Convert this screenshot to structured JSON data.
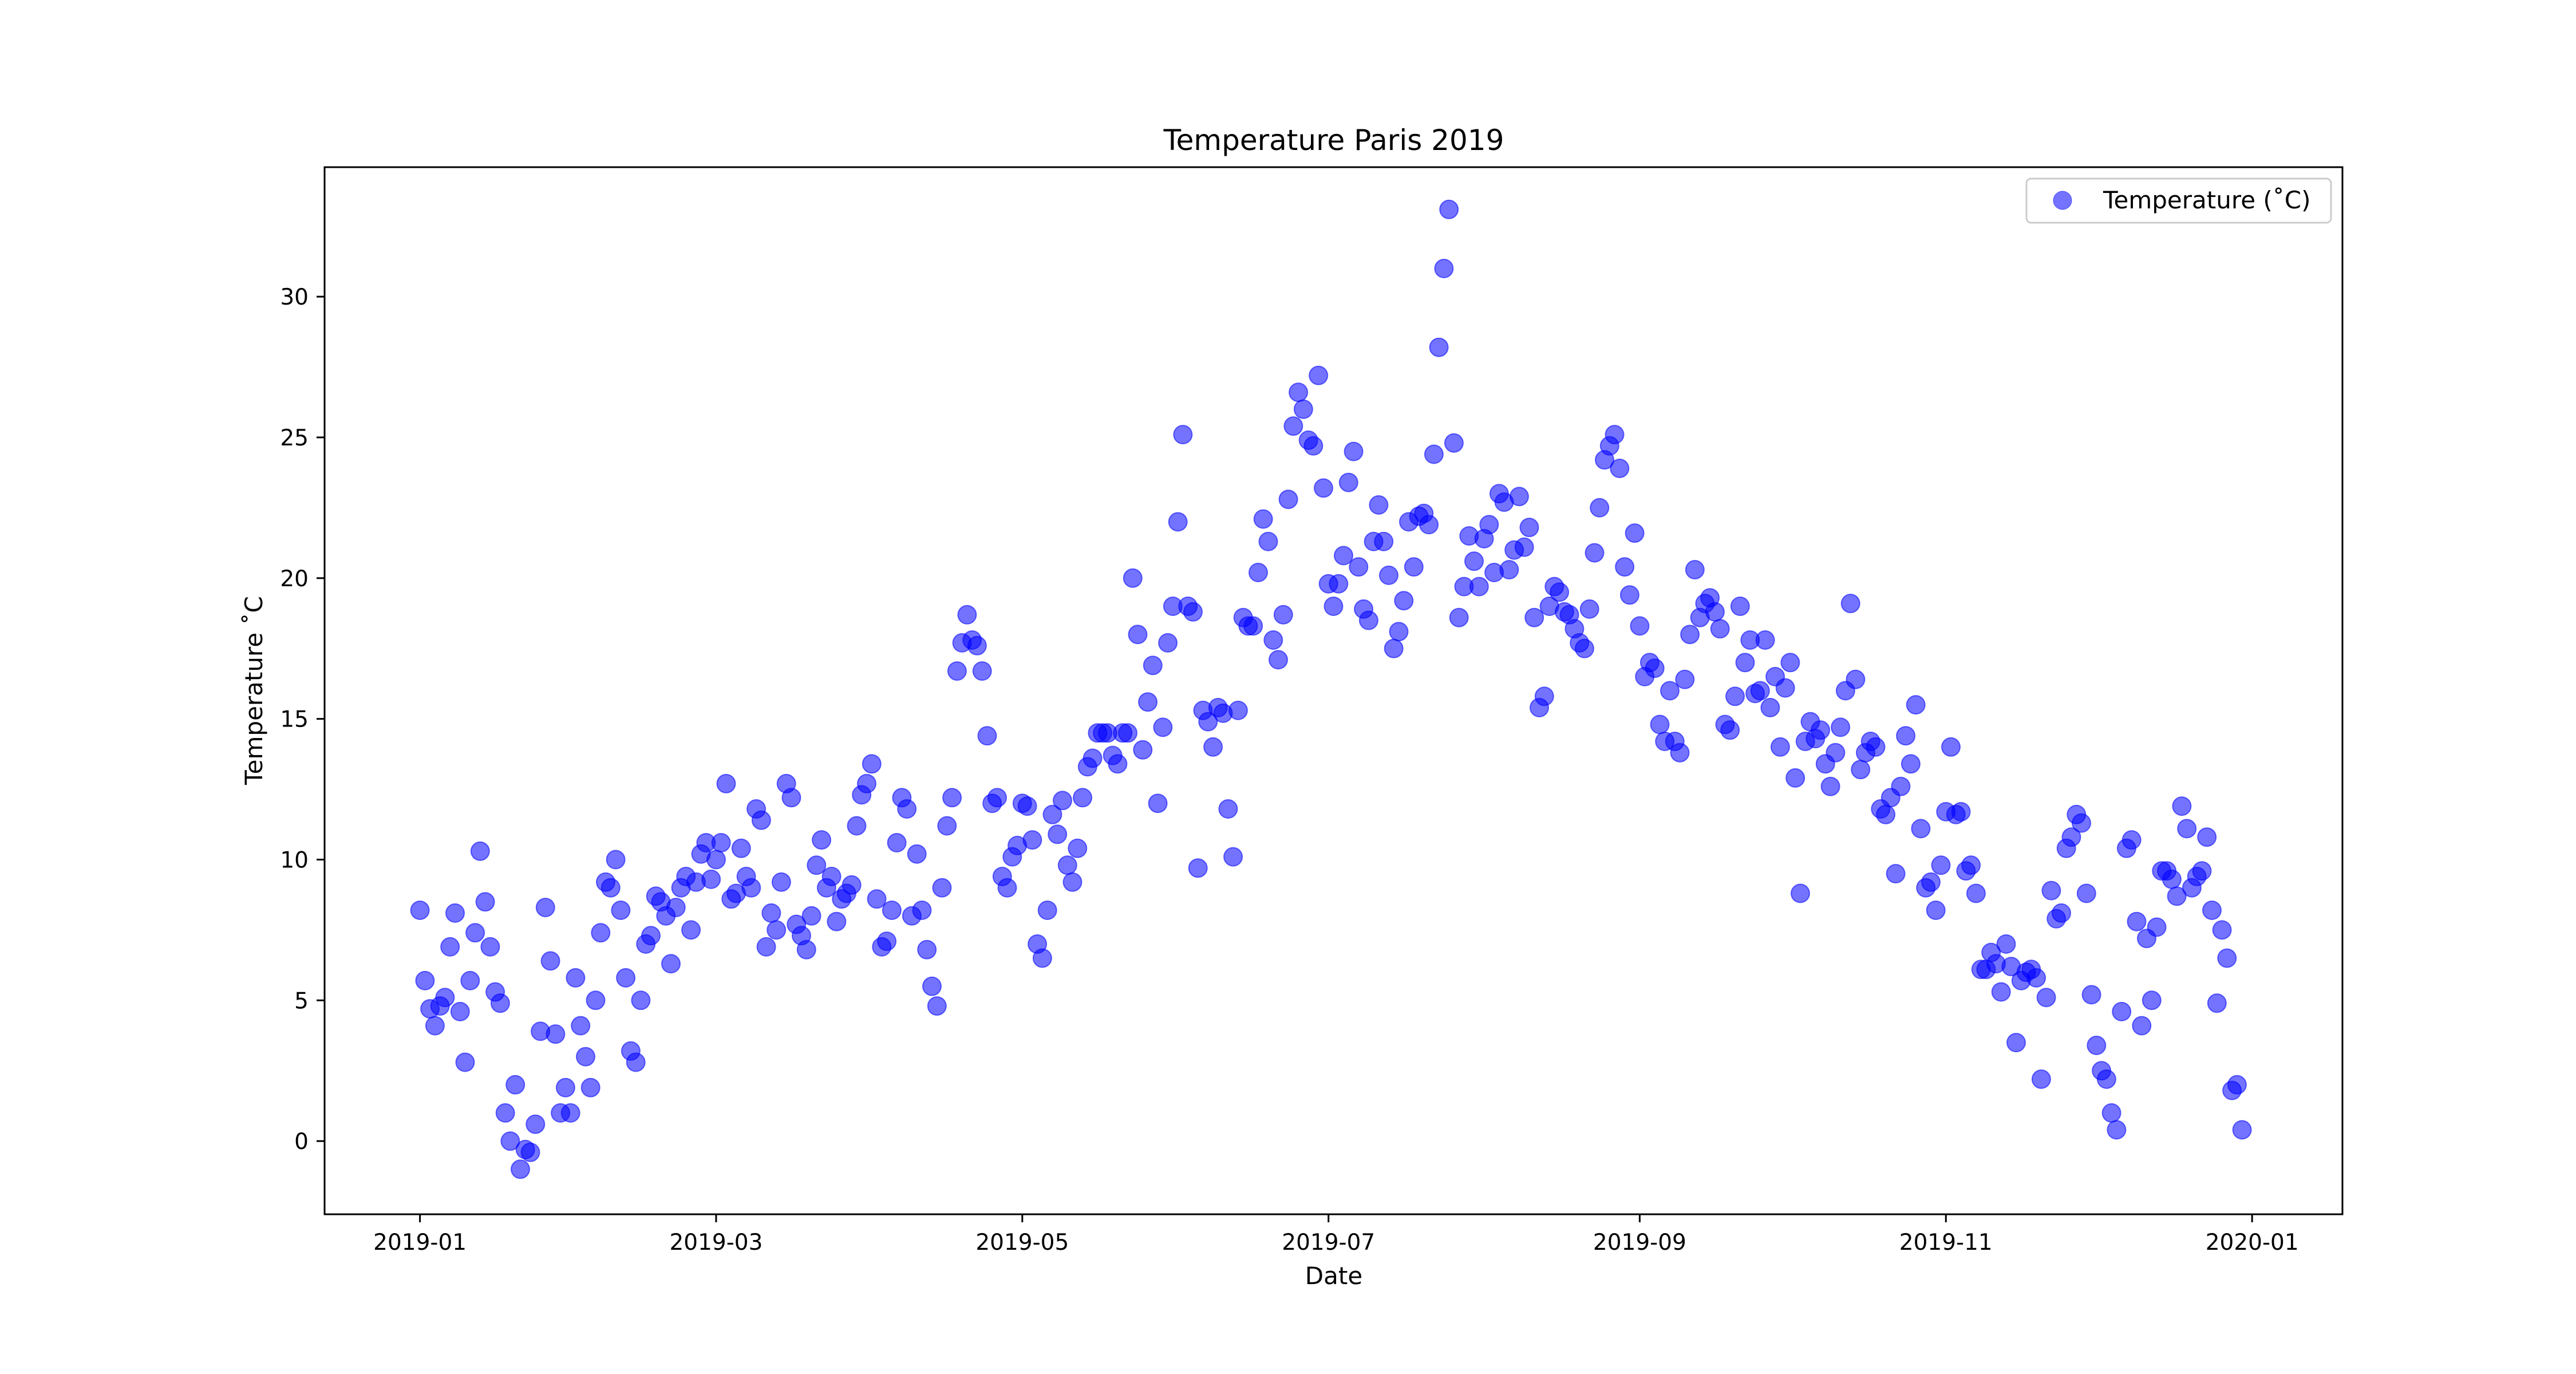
{
  "chart_data": {
    "type": "scatter",
    "title": "Temperature Paris 2019",
    "xlabel": "Date",
    "ylabel": "Temperature ˚C",
    "x_ticks": [
      "2019-01",
      "2019-03",
      "2019-05",
      "2019-07",
      "2019-09",
      "2019-11",
      "2020-01"
    ],
    "y_ticks": [
      0,
      5,
      10,
      15,
      20,
      25,
      30
    ],
    "xlim": [
      "2018-12-13",
      "2020-01-19"
    ],
    "ylim": [
      -2.6,
      34.6
    ],
    "grid": false,
    "legend_position": "top-right",
    "marker_color": "#0000ff",
    "marker_alpha": 0.55,
    "series": [
      {
        "name": "Temperature (˚C)",
        "start_date": "2019-01-01",
        "values": [
          8.2,
          5.7,
          4.7,
          4.1,
          4.8,
          5.1,
          6.9,
          8.1,
          4.6,
          2.8,
          5.7,
          7.4,
          10.3,
          8.5,
          6.9,
          5.3,
          4.9,
          1.0,
          0.0,
          2.0,
          -1.0,
          -0.3,
          -0.4,
          0.6,
          3.9,
          8.3,
          6.4,
          3.8,
          1.0,
          1.9,
          1.0,
          5.8,
          4.1,
          3.0,
          1.9,
          5.0,
          7.4,
          9.2,
          9.0,
          10.0,
          8.2,
          5.8,
          3.2,
          2.8,
          5.0,
          7.0,
          7.3,
          8.7,
          8.5,
          8.0,
          6.3,
          8.3,
          9.0,
          9.4,
          7.5,
          9.2,
          10.2,
          10.6,
          9.3,
          10.0,
          10.6,
          12.7,
          8.6,
          8.8,
          10.4,
          9.4,
          9.0,
          11.8,
          11.4,
          6.9,
          8.1,
          7.5,
          9.2,
          12.7,
          12.2,
          7.7,
          7.3,
          6.8,
          8.0,
          9.8,
          10.7,
          9.0,
          9.4,
          7.8,
          8.6,
          8.8,
          9.1,
          11.2,
          12.3,
          12.7,
          13.4,
          8.6,
          6.9,
          7.1,
          8.2,
          10.6,
          12.2,
          11.8,
          8.0,
          10.2,
          8.2,
          6.8,
          5.5,
          4.8,
          9.0,
          11.2,
          12.2,
          16.7,
          17.7,
          18.7,
          17.8,
          17.6,
          16.7,
          14.4,
          12.0,
          12.2,
          9.4,
          9.0,
          10.1,
          10.5,
          12.0,
          11.9,
          10.7,
          7.0,
          6.5,
          8.2,
          11.6,
          10.9,
          12.1,
          9.8,
          9.2,
          10.4,
          12.2,
          13.3,
          13.6,
          14.5,
          14.5,
          14.5,
          13.7,
          13.4,
          14.5,
          14.5,
          20.0,
          18.0,
          13.9,
          15.6,
          16.9,
          12.0,
          14.7,
          17.7,
          19.0,
          22.0,
          25.1,
          19.0,
          18.8,
          9.7,
          15.3,
          14.9,
          14.0,
          15.4,
          15.2,
          11.8,
          10.1,
          15.3,
          18.6,
          18.3,
          18.3,
          20.2,
          22.1,
          21.3,
          17.8,
          17.1,
          18.7,
          22.8,
          25.4,
          26.6,
          26.0,
          24.9,
          24.7,
          27.2,
          23.2,
          19.8,
          19.0,
          19.8,
          20.8,
          23.4,
          24.5,
          20.4,
          18.9,
          18.5,
          21.3,
          22.6,
          21.3,
          20.1,
          17.5,
          18.1,
          19.2,
          22.0,
          20.4,
          22.2,
          22.3,
          21.9,
          24.4,
          28.2,
          31.0,
          33.1,
          24.8,
          18.6,
          19.7,
          21.5,
          20.6,
          19.7,
          21.4,
          21.9,
          20.2,
          23.0,
          22.7,
          20.3,
          21.0,
          22.9,
          21.1,
          21.8,
          18.6,
          15.4,
          15.8,
          19.0,
          19.7,
          19.5,
          18.8,
          18.7,
          18.2,
          17.7,
          17.5,
          18.9,
          20.9,
          22.5,
          24.2,
          24.7,
          25.1,
          23.9,
          20.4,
          19.4,
          21.6,
          18.3,
          16.5,
          17.0,
          16.8,
          14.8,
          14.2,
          16.0,
          14.2,
          13.8,
          16.4,
          18.0,
          20.3,
          18.6,
          19.1,
          19.3,
          18.8,
          18.2,
          14.8,
          14.6,
          15.8,
          19.0,
          17.0,
          17.8,
          15.9,
          16.0,
          17.8,
          15.4,
          16.5,
          14.0,
          16.1,
          17.0,
          12.9,
          8.8,
          14.2,
          14.9,
          14.3,
          14.6,
          13.4,
          12.6,
          13.8,
          14.7,
          16.0,
          19.1,
          16.4,
          13.2,
          13.8,
          14.2,
          14.0,
          11.8,
          11.6,
          12.2,
          9.5,
          12.6,
          14.4,
          13.4,
          15.5,
          11.1,
          9.0,
          9.2,
          8.2,
          9.8,
          11.7,
          14.0,
          11.6,
          11.7,
          9.6,
          9.8,
          8.8,
          6.1,
          6.1,
          6.7,
          6.3,
          5.3,
          7.0,
          6.2,
          3.5,
          5.7,
          6.0,
          6.1,
          5.8,
          2.2,
          5.1,
          8.9,
          7.9,
          8.1,
          10.4,
          10.8,
          11.6,
          11.3,
          8.8,
          5.2,
          3.4,
          2.5,
          2.2,
          1.0,
          0.4,
          4.6,
          10.4,
          10.7,
          7.8,
          4.1,
          7.2,
          5.0,
          7.6,
          9.6,
          9.6,
          9.3,
          8.7,
          11.9,
          11.1,
          9.0,
          9.4,
          9.6,
          10.8,
          8.2,
          4.9,
          7.5,
          6.5,
          1.8,
          2.0,
          0.4
        ]
      }
    ]
  }
}
